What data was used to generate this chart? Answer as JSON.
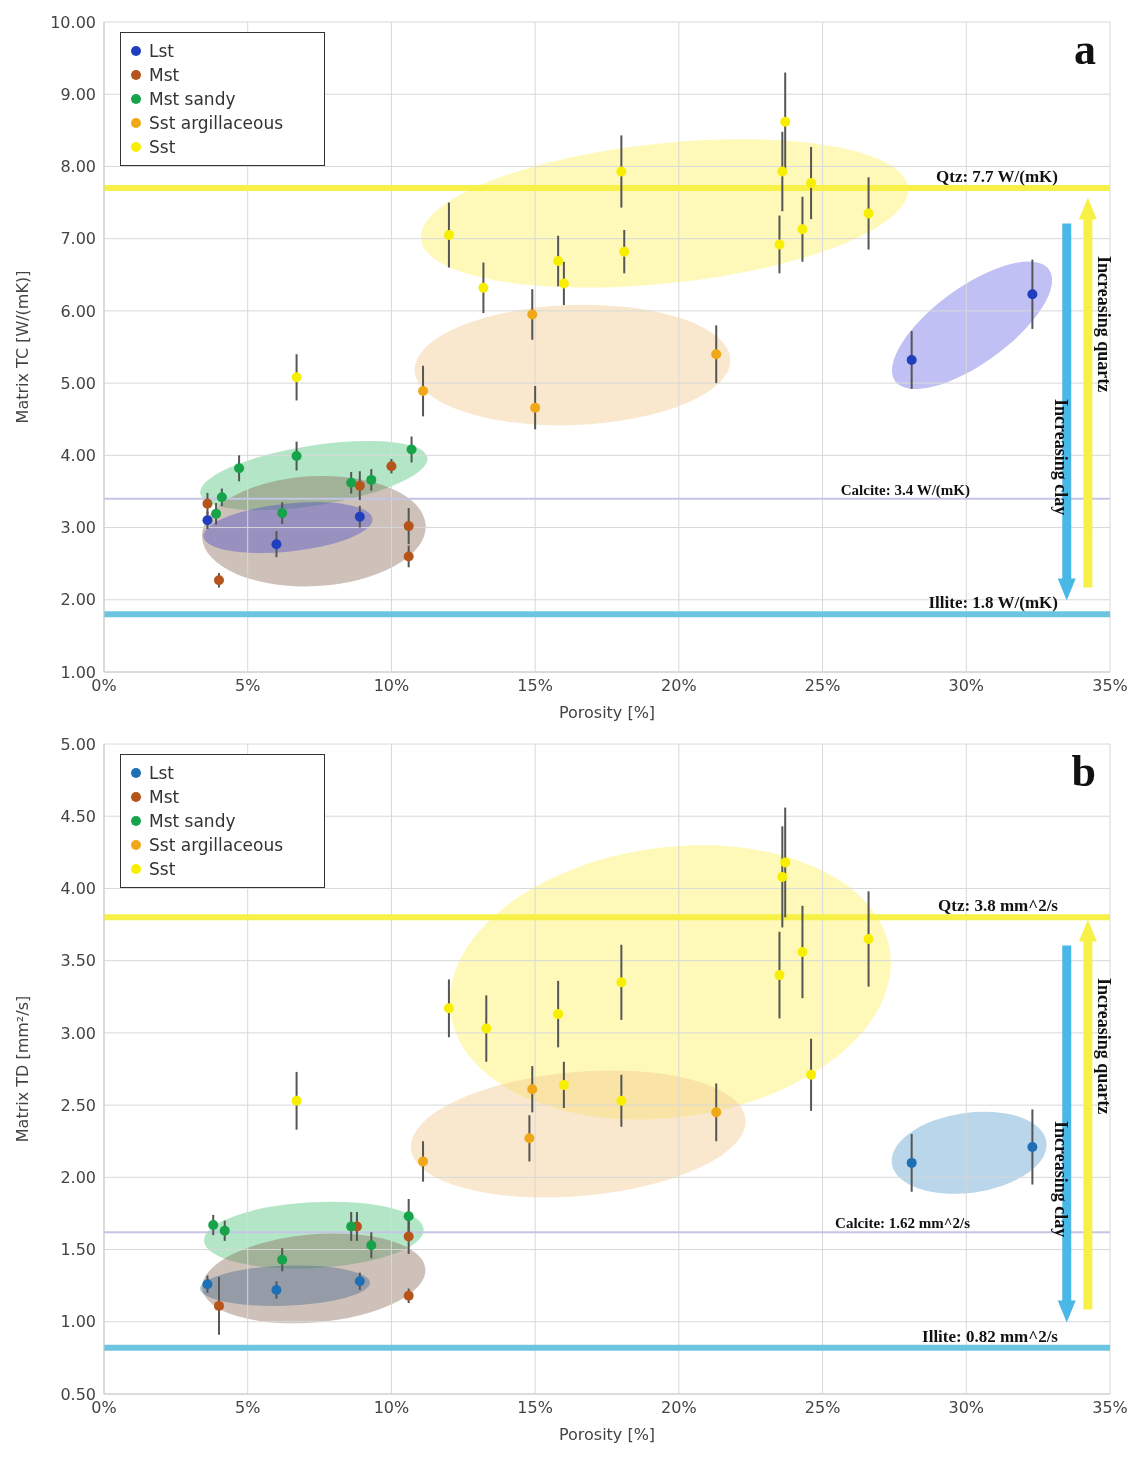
{
  "chart_data": [
    {
      "type": "scatter",
      "xlabel": "Porosity [%]",
      "ylabel": "Matrix TC [W/(mK)]",
      "xlim": [
        0,
        35
      ],
      "ylim": [
        1,
        10
      ],
      "xticks": [
        {
          "value": 0,
          "label": "0%"
        },
        {
          "value": 5,
          "label": "5%"
        },
        {
          "value": 10,
          "label": "10%"
        },
        {
          "value": 15,
          "label": "15%"
        },
        {
          "value": 20,
          "label": "20%"
        },
        {
          "value": 25,
          "label": "25%"
        },
        {
          "value": 30,
          "label": "30%"
        },
        {
          "value": 35,
          "label": "35%"
        }
      ],
      "yticks": [
        {
          "value": 1,
          "label": "1.00"
        },
        {
          "value": 2,
          "label": "2.00"
        },
        {
          "value": 3,
          "label": "3.00"
        },
        {
          "value": 4,
          "label": "4.00"
        },
        {
          "value": 5,
          "label": "5.00"
        },
        {
          "value": 6,
          "label": "6.00"
        },
        {
          "value": 7,
          "label": "7.00"
        },
        {
          "value": 8,
          "label": "8.00"
        },
        {
          "value": 9,
          "label": "9.00"
        },
        {
          "value": 10,
          "label": "10.00"
        }
      ],
      "grid": true,
      "legend": "top left",
      "marker": "circle",
      "series": [
        {
          "name": "Lst",
          "color": "#1f3fbf",
          "x": [
            3.6,
            6.0,
            8.9,
            28.1,
            32.3
          ],
          "values": [
            3.1,
            2.77,
            3.15,
            5.32,
            6.23
          ],
          "errors": [
            0.12,
            0.18,
            0.15,
            0.4,
            0.48
          ]
        },
        {
          "name": "Mst",
          "color": "#b5541b",
          "x": [
            3.6,
            4.0,
            8.9,
            10.0,
            10.6,
            10.6
          ],
          "values": [
            3.33,
            2.27,
            3.58,
            3.85,
            3.02,
            2.6
          ],
          "errors": [
            0.15,
            0.1,
            0.2,
            0.1,
            0.25,
            0.15
          ]
        },
        {
          "name": "Mst sandy",
          "color": "#17a34a",
          "x": [
            3.9,
            4.1,
            4.7,
            6.2,
            6.7,
            8.6,
            9.3,
            10.7
          ],
          "values": [
            3.19,
            3.42,
            3.82,
            3.2,
            3.99,
            3.62,
            3.66,
            4.08
          ],
          "errors": [
            0.15,
            0.12,
            0.18,
            0.15,
            0.2,
            0.15,
            0.15,
            0.18
          ]
        },
        {
          "name": "Sst argillaceous",
          "color": "#f0a818",
          "x": [
            11.1,
            14.9,
            15.0,
            21.3
          ],
          "values": [
            4.89,
            5.95,
            4.66,
            5.4
          ],
          "errors": [
            0.35,
            0.35,
            0.3,
            0.4
          ]
        },
        {
          "name": "Sst",
          "color": "#f7ee00",
          "x": [
            6.7,
            12.0,
            13.2,
            15.8,
            16.0,
            18.0,
            18.1,
            23.5,
            23.6,
            23.7,
            24.3,
            24.6,
            26.6
          ],
          "values": [
            5.08,
            7.05,
            6.32,
            6.69,
            6.38,
            7.93,
            6.82,
            6.92,
            7.93,
            8.62,
            7.13,
            7.77,
            7.35
          ],
          "errors": [
            0.32,
            0.45,
            0.35,
            0.35,
            0.3,
            0.5,
            0.3,
            0.4,
            0.55,
            0.68,
            0.45,
            0.5,
            0.5
          ]
        }
      ],
      "ref_lines": [
        {
          "axis": "y",
          "value": 7.7,
          "label": "Qtz: 7.7 W/(mK)",
          "color": "#f7f046"
        },
        {
          "axis": "y",
          "value": 3.4,
          "label": "Calcite: 3.4 W/(mK)",
          "color": "#c4c4e4"
        },
        {
          "axis": "y",
          "value": 1.8,
          "label": "Illite: 1.8 W/(mK)",
          "color": "#6cc5e0"
        }
      ],
      "annotations": [
        "a",
        "Increasing quartz",
        "Increasing clay"
      ]
    },
    {
      "type": "scatter",
      "xlabel": "Porosity [%]",
      "ylabel": "Matrix TD [mm²/s]",
      "xlim": [
        0,
        35
      ],
      "ylim": [
        0.5,
        5
      ],
      "xticks": [
        {
          "value": 0,
          "label": "0%"
        },
        {
          "value": 5,
          "label": "5%"
        },
        {
          "value": 10,
          "label": "10%"
        },
        {
          "value": 15,
          "label": "15%"
        },
        {
          "value": 20,
          "label": "20%"
        },
        {
          "value": 25,
          "label": "25%"
        },
        {
          "value": 30,
          "label": "30%"
        },
        {
          "value": 35,
          "label": "35%"
        }
      ],
      "yticks": [
        {
          "value": 0.5,
          "label": "0.50"
        },
        {
          "value": 1,
          "label": "1.00"
        },
        {
          "value": 1.5,
          "label": "1.50"
        },
        {
          "value": 2,
          "label": "2.00"
        },
        {
          "value": 2.5,
          "label": "2.50"
        },
        {
          "value": 3,
          "label": "3.00"
        },
        {
          "value": 3.5,
          "label": "3.50"
        },
        {
          "value": 4,
          "label": "4.00"
        },
        {
          "value": 4.5,
          "label": "4.50"
        },
        {
          "value": 5,
          "label": "5.00"
        }
      ],
      "grid": true,
      "legend": "top left",
      "marker": "circle",
      "series": [
        {
          "name": "Lst",
          "color": "#1f6fb4",
          "x": [
            3.6,
            6.0,
            8.9,
            28.1,
            32.3
          ],
          "values": [
            1.26,
            1.22,
            1.28,
            2.1,
            2.21
          ],
          "errors": [
            0.06,
            0.06,
            0.06,
            0.2,
            0.26
          ]
        },
        {
          "name": "Mst",
          "color": "#b5541b",
          "x": [
            4.0,
            8.8,
            10.6,
            10.6
          ],
          "values": [
            1.11,
            1.66,
            1.59,
            1.18
          ],
          "errors": [
            0.2,
            0.1,
            0.12,
            0.05
          ]
        },
        {
          "name": "Mst sandy",
          "color": "#17a34a",
          "x": [
            3.8,
            4.2,
            6.2,
            8.6,
            9.3,
            10.6
          ],
          "values": [
            1.67,
            1.63,
            1.43,
            1.66,
            1.53,
            1.73
          ],
          "errors": [
            0.07,
            0.07,
            0.08,
            0.1,
            0.09,
            0.12
          ]
        },
        {
          "name": "Sst argillaceous",
          "color": "#f0a818",
          "x": [
            11.1,
            14.8,
            14.9,
            21.3
          ],
          "values": [
            2.11,
            2.27,
            2.61,
            2.45
          ],
          "errors": [
            0.14,
            0.16,
            0.16,
            0.2
          ]
        },
        {
          "name": "Sst",
          "color": "#f7ee00",
          "x": [
            6.7,
            12.0,
            13.3,
            15.8,
            18.0,
            16.0,
            18.0,
            23.5,
            23.6,
            23.7,
            24.3,
            24.6,
            26.6
          ],
          "values": [
            2.53,
            3.17,
            3.03,
            3.13,
            3.35,
            2.64,
            2.53,
            3.4,
            4.08,
            4.18,
            3.56,
            2.71,
            3.65
          ],
          "errors": [
            0.2,
            0.2,
            0.23,
            0.23,
            0.26,
            0.16,
            0.18,
            0.3,
            0.35,
            0.38,
            0.32,
            0.25,
            0.33
          ]
        }
      ],
      "ref_lines": [
        {
          "axis": "y",
          "value": 3.8,
          "label": "Qtz: 3.8 mm^2/s",
          "color": "#f7f046"
        },
        {
          "axis": "y",
          "value": 1.62,
          "label": "Calcite: 1.62 mm^2/s",
          "color": "#c4c4e4"
        },
        {
          "axis": "y",
          "value": 0.82,
          "label": "Illite: 0.82 mm^2/s",
          "color": "#6cc5e0"
        }
      ],
      "annotations": [
        "b",
        "Increasing quartz",
        "Increasing clay"
      ]
    }
  ]
}
